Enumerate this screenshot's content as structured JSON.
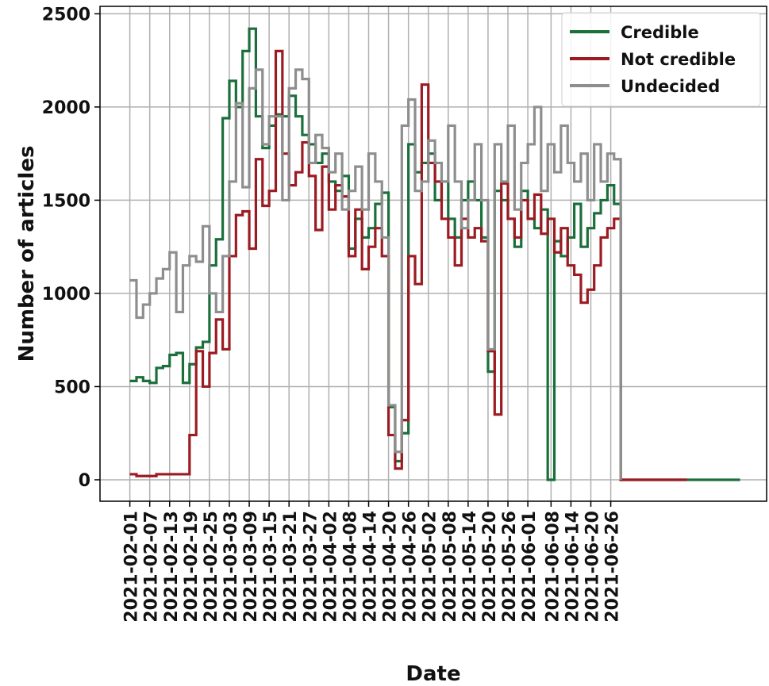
{
  "chart_data": {
    "type": "line",
    "xlabel": "Date",
    "ylabel": "Number of articles",
    "x": [
      "2021-02-01",
      "2021-02-03",
      "2021-02-05",
      "2021-02-07",
      "2021-02-09",
      "2021-02-11",
      "2021-02-13",
      "2021-02-15",
      "2021-02-17",
      "2021-02-19",
      "2021-02-21",
      "2021-02-23",
      "2021-02-25",
      "2021-02-27",
      "2021-03-01",
      "2021-03-03",
      "2021-03-05",
      "2021-03-07",
      "2021-03-09",
      "2021-03-11",
      "2021-03-13",
      "2021-03-15",
      "2021-03-17",
      "2021-03-19",
      "2021-03-21",
      "2021-03-23",
      "2021-03-25",
      "2021-03-27",
      "2021-03-29",
      "2021-03-31",
      "2021-04-02",
      "2021-04-04",
      "2021-04-06",
      "2021-04-08",
      "2021-04-10",
      "2021-04-12",
      "2021-04-14",
      "2021-04-16",
      "2021-04-18",
      "2021-04-20",
      "2021-04-22",
      "2021-04-24",
      "2021-04-26",
      "2021-04-28",
      "2021-04-30",
      "2021-05-02",
      "2021-05-04",
      "2021-05-06",
      "2021-05-08",
      "2021-05-10",
      "2021-05-12",
      "2021-05-14",
      "2021-05-16",
      "2021-05-18",
      "2021-05-20",
      "2021-05-22",
      "2021-05-24",
      "2021-05-26",
      "2021-05-28",
      "2021-05-30",
      "2021-06-01",
      "2021-06-03",
      "2021-06-05",
      "2021-06-07",
      "2021-06-09",
      "2021-06-11",
      "2021-06-13",
      "2021-06-15",
      "2021-06-17",
      "2021-06-19",
      "2021-06-21",
      "2021-06-23",
      "2021-06-25",
      "2021-06-27",
      "2021-06-29",
      "2021-07-19",
      "2021-08-04"
    ],
    "series": [
      {
        "name": "Credible",
        "color": "#1b6f3b",
        "values": [
          530,
          550,
          530,
          520,
          600,
          610,
          670,
          680,
          520,
          620,
          710,
          740,
          1150,
          1290,
          1940,
          2140,
          2000,
          2300,
          2420,
          1950,
          1780,
          1900,
          1960,
          1950,
          2060,
          1950,
          1850,
          1800,
          1700,
          1750,
          1600,
          1550,
          1630,
          1240,
          1400,
          1300,
          1350,
          1480,
          1540,
          390,
          100,
          250,
          1800,
          1650,
          1700,
          1750,
          1500,
          1600,
          1400,
          1300,
          1500,
          1600,
          1500,
          1300,
          580,
          1550,
          1500,
          1400,
          1250,
          1550,
          1400,
          1350,
          1450,
          0,
          1280,
          1200,
          1300,
          1480,
          1250,
          1350,
          1430,
          1500,
          1580,
          1480,
          0,
          0,
          0
        ]
      },
      {
        "name": "Not credible",
        "color": "#9c1b22",
        "values": [
          30,
          20,
          20,
          20,
          30,
          30,
          30,
          30,
          30,
          240,
          690,
          500,
          680,
          860,
          700,
          1200,
          1420,
          1440,
          1240,
          1720,
          1470,
          1550,
          2300,
          1750,
          1580,
          1650,
          1810,
          1630,
          1340,
          1680,
          1450,
          1580,
          1520,
          1200,
          1450,
          1130,
          1250,
          1350,
          1200,
          240,
          60,
          320,
          1200,
          1050,
          2120,
          1700,
          1600,
          1400,
          1300,
          1150,
          1400,
          1300,
          1350,
          1280,
          690,
          350,
          1590,
          1400,
          1300,
          1500,
          1400,
          1530,
          1320,
          1400,
          1220,
          1350,
          1150,
          1100,
          950,
          1020,
          1150,
          1300,
          1350,
          1400,
          0,
          0,
          null
        ]
      },
      {
        "name": "Undecided",
        "color": "#8e8e8e",
        "values": [
          1070,
          870,
          940,
          1000,
          1080,
          1130,
          1220,
          900,
          1150,
          1200,
          1170,
          1360,
          1000,
          900,
          1200,
          1600,
          2020,
          1570,
          2100,
          2200,
          1800,
          1950,
          1950,
          1500,
          2100,
          2200,
          2150,
          1700,
          1850,
          1780,
          1650,
          1750,
          1450,
          1550,
          1680,
          1450,
          1750,
          1600,
          1300,
          400,
          150,
          1900,
          2040,
          1550,
          1600,
          1820,
          1700,
          1600,
          1900,
          1600,
          1350,
          1500,
          1800,
          1500,
          700,
          1800,
          1600,
          1900,
          1450,
          1700,
          1800,
          2000,
          1550,
          1800,
          1650,
          1900,
          1700,
          1600,
          1750,
          1500,
          1800,
          1600,
          1750,
          1720,
          0,
          null,
          null
        ]
      }
    ],
    "xlim": [
      "2021-01-23",
      "2021-08-12"
    ],
    "xticks": [
      "2021-02-01",
      "2021-02-07",
      "2021-02-13",
      "2021-02-19",
      "2021-02-25",
      "2021-03-03",
      "2021-03-09",
      "2021-03-15",
      "2021-03-21",
      "2021-03-27",
      "2021-04-02",
      "2021-04-08",
      "2021-04-14",
      "2021-04-20",
      "2021-04-26",
      "2021-05-02",
      "2021-05-08",
      "2021-05-14",
      "2021-05-20",
      "2021-05-26",
      "2021-06-01",
      "2021-06-08",
      "2021-06-14",
      "2021-06-20",
      "2021-06-26"
    ],
    "ylim": [
      -115,
      2540
    ],
    "yticks": [
      0,
      500,
      1000,
      1500,
      2000,
      2500
    ],
    "grid": true,
    "legend": "upper right"
  }
}
